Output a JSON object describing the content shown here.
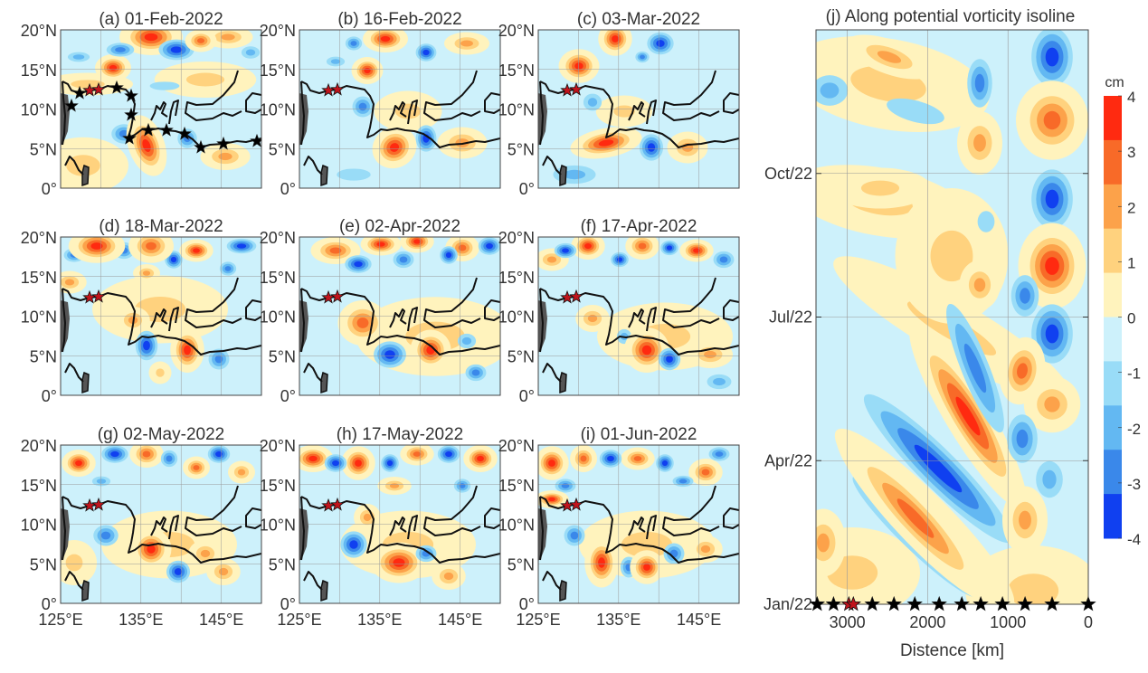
{
  "chart_data": {
    "type": "heatmap",
    "colors": {
      "levels": [
        "#ff2a10",
        "#f86a28",
        "#fca24a",
        "#ffd27e",
        "#fff3bd",
        "#cdf1fb",
        "#99dcf7",
        "#63b8f2",
        "#3a88ea",
        "#1040f0"
      ],
      "contour_line": "#111111",
      "land": "#555555",
      "star_black": "#000000",
      "star_red": "#c0141c"
    },
    "map_panels": [
      {
        "title": "(a) 01-Feb-2022",
        "track": "all"
      },
      {
        "title": "(b) 16-Feb-2022",
        "track": "red"
      },
      {
        "title": "(c) 03-Mar-2022",
        "track": "red"
      },
      {
        "title": "(d) 18-Mar-2022",
        "track": "red"
      },
      {
        "title": "(e) 02-Apr-2022",
        "track": "red"
      },
      {
        "title": "(f) 17-Apr-2022",
        "track": "red"
      },
      {
        "title": "(g) 02-May-2022",
        "track": "red"
      },
      {
        "title": "(h) 17-May-2022",
        "track": "red"
      },
      {
        "title": "(i) 01-Jun-2022",
        "track": "red"
      }
    ],
    "map_axes": {
      "lat_range": [
        0,
        20
      ],
      "lon_range": [
        125,
        150
      ],
      "lat_ticks": [
        "20°N",
        "15°N",
        "10°N",
        "5°N",
        "0°"
      ],
      "lon_ticks": [
        "125°E",
        "135°E",
        "145°E"
      ],
      "grid": true
    },
    "hovmoller": {
      "title": "(j) Along potential vorticity isoline",
      "xlabel": "Distence [km]",
      "xlim": [
        3390,
        0
      ],
      "x_ticks": [
        {
          "value": 3000,
          "label": "3000"
        },
        {
          "value": 2000,
          "label": "2000"
        },
        {
          "value": 1000,
          "label": "1000"
        },
        {
          "value": 0,
          "label": "0"
        }
      ],
      "ylim": [
        "Jan/22",
        "Jan/23"
      ],
      "y_ticks": [
        {
          "month": 0,
          "label": "Jan/22"
        },
        {
          "month": 3,
          "label": "Apr/22"
        },
        {
          "month": 6,
          "label": "Jul/22"
        },
        {
          "month": 9,
          "label": "Oct/22"
        }
      ],
      "grid": true,
      "stars_km": [
        3375,
        3172,
        2981,
        2925,
        2689,
        2419,
        2160,
        1856,
        1575,
        1339,
        1069,
        787,
        450,
        0
      ],
      "red_stars_km": [
        2981,
        2925
      ]
    },
    "colorbar": {
      "unit": "cm",
      "range": [
        -4,
        4
      ],
      "ticks": [
        "4",
        "3",
        "2",
        "1",
        "0",
        "-1",
        "-2",
        "-3",
        "-4"
      ],
      "placement": "right"
    }
  }
}
